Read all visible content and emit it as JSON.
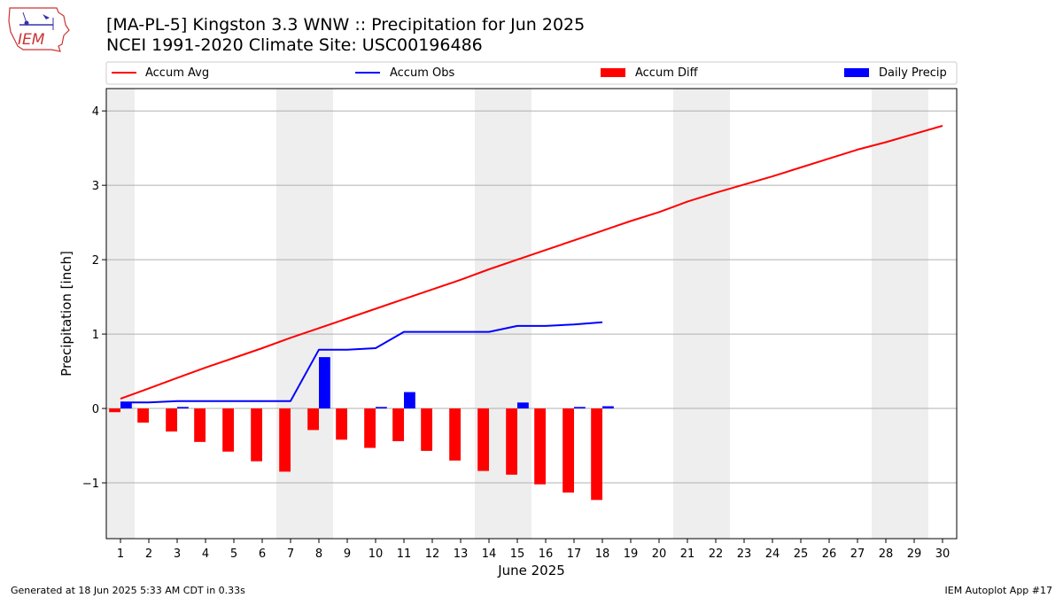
{
  "header": {
    "title_line1": "[MA-PL-5] Kingston 3.3 WNW :: Precipitation for Jun 2025",
    "title_line2": "NCEI 1991-2020 Climate Site: USC00196486",
    "logo_text": "IEM"
  },
  "footer": {
    "generated": "Generated at 18 Jun 2025 5:33 AM CDT in 0.33s",
    "app": "IEM Autoplot App #17"
  },
  "colors": {
    "avg": "#ff0000",
    "obs": "#0000ff",
    "diff": "#ff0000",
    "daily": "#0000ff",
    "weekend_band": "#eeeeee",
    "grid": "#b0b0b0"
  },
  "chart_data": {
    "type": "bar",
    "xlabel": "June 2025",
    "ylabel": "Precipitation [inch]",
    "xlim": [
      0.5,
      30.5
    ],
    "ylim": [
      -1.75,
      4.3
    ],
    "x_ticks": [
      1,
      2,
      3,
      4,
      5,
      6,
      7,
      8,
      9,
      10,
      11,
      12,
      13,
      14,
      15,
      16,
      17,
      18,
      19,
      20,
      21,
      22,
      23,
      24,
      25,
      26,
      27,
      28,
      29,
      30
    ],
    "y_ticks": [
      -1,
      0,
      1,
      2,
      3,
      4
    ],
    "y_tick_labels": [
      "−1",
      "0",
      "1",
      "2",
      "3",
      "4"
    ],
    "grid": "horizontal",
    "legend_position": "top",
    "weekend_bands": [
      [
        0.5,
        1.5
      ],
      [
        6.5,
        8.5
      ],
      [
        13.5,
        15.5
      ],
      [
        20.5,
        22.5
      ],
      [
        27.5,
        29.5
      ]
    ],
    "series": [
      {
        "name": "Accum Avg",
        "kind": "line",
        "x": [
          1,
          2,
          3,
          4,
          5,
          6,
          7,
          8,
          9,
          10,
          11,
          12,
          13,
          14,
          15,
          16,
          17,
          18,
          19,
          20,
          21,
          22,
          23,
          24,
          25,
          26,
          27,
          28,
          29,
          30
        ],
        "values": [
          0.13,
          0.27,
          0.41,
          0.55,
          0.68,
          0.81,
          0.95,
          1.08,
          1.21,
          1.34,
          1.47,
          1.6,
          1.73,
          1.87,
          2.0,
          2.13,
          2.26,
          2.39,
          2.52,
          2.64,
          2.78,
          2.9,
          3.01,
          3.12,
          3.24,
          3.36,
          3.48,
          3.58,
          3.69,
          3.8
        ]
      },
      {
        "name": "Accum Obs",
        "kind": "line",
        "x": [
          1,
          2,
          3,
          4,
          5,
          6,
          7,
          8,
          9,
          10,
          11,
          12,
          13,
          14,
          15,
          16,
          17,
          18
        ],
        "values": [
          0.08,
          0.08,
          0.1,
          0.1,
          0.1,
          0.1,
          0.1,
          0.79,
          0.79,
          0.81,
          1.03,
          1.03,
          1.03,
          1.03,
          1.11,
          1.11,
          1.13,
          1.16
        ]
      },
      {
        "name": "Accum Diff",
        "kind": "bar",
        "x": [
          1,
          2,
          3,
          4,
          5,
          6,
          7,
          8,
          9,
          10,
          11,
          12,
          13,
          14,
          15,
          16,
          17,
          18
        ],
        "values": [
          -0.05,
          -0.19,
          -0.31,
          -0.45,
          -0.58,
          -0.71,
          -0.85,
          -0.29,
          -0.42,
          -0.53,
          -0.44,
          -0.57,
          -0.7,
          -0.84,
          -0.89,
          -1.02,
          -1.13,
          -1.23
        ]
      },
      {
        "name": "Daily Precip",
        "kind": "bar",
        "x": [
          1,
          2,
          3,
          4,
          5,
          6,
          7,
          8,
          9,
          10,
          11,
          12,
          13,
          14,
          15,
          16,
          17,
          18
        ],
        "values": [
          0.08,
          0.0,
          0.02,
          0.0,
          0.0,
          0.0,
          0.0,
          0.69,
          0.0,
          0.02,
          0.22,
          0.0,
          0.0,
          0.0,
          0.08,
          0.0,
          0.02,
          0.03
        ]
      }
    ]
  }
}
